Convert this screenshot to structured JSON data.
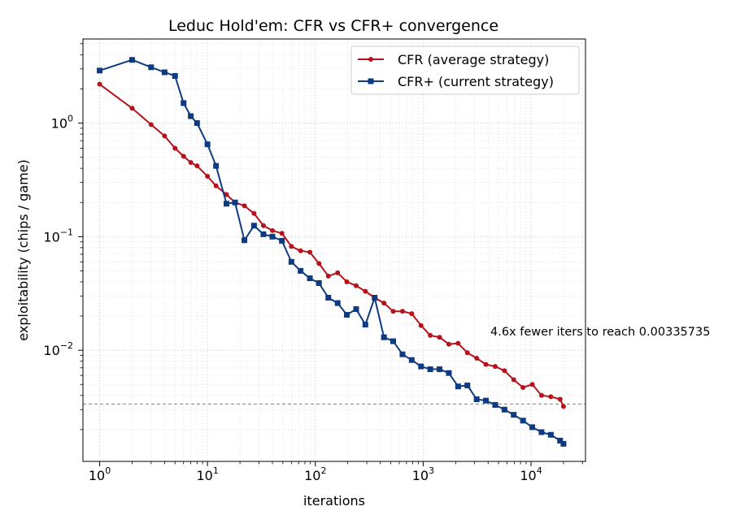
{
  "chart_data": {
    "type": "line",
    "title": "Leduc Hold'em: CFR vs CFR+ convergence",
    "xlabel": "iterations",
    "ylabel": "exploitability (chips / game)",
    "xscale": "log",
    "yscale": "log",
    "xlim": [
      0.7,
      32000
    ],
    "ylim": [
      0.00105,
      5.5
    ],
    "x_ticks": [
      {
        "value": 1,
        "base": "10",
        "exp": "0"
      },
      {
        "value": 10,
        "base": "10",
        "exp": "1"
      },
      {
        "value": 100,
        "base": "10",
        "exp": "2"
      },
      {
        "value": 1000,
        "base": "10",
        "exp": "3"
      },
      {
        "value": 10000,
        "base": "10",
        "exp": "4"
      }
    ],
    "y_ticks": [
      {
        "value": 0.01,
        "base": "10",
        "exp": "−2"
      },
      {
        "value": 0.1,
        "base": "10",
        "exp": "−1"
      },
      {
        "value": 1,
        "base": "10",
        "exp": "0"
      }
    ],
    "grid": true,
    "legend_position": "top-right",
    "reference_line": {
      "y": 0.00335735,
      "style": "dashed",
      "color": "#808080"
    },
    "annotation": {
      "text": "4.6x fewer iters to reach 0.00335735",
      "x": 4200,
      "y": 0.0135
    },
    "series": [
      {
        "name": "CFR (average strategy)",
        "color": "#b5121b",
        "marker": "circle",
        "x": [
          1,
          2,
          3,
          4,
          5,
          6,
          7,
          8,
          10,
          12,
          15,
          18,
          22,
          27,
          33,
          40,
          49,
          60,
          73,
          89,
          108,
          132,
          161,
          196,
          239,
          291,
          355,
          433,
          527,
          643,
          783,
          955,
          1164,
          1419,
          1730,
          2108,
          2570,
          3132,
          3818,
          4654,
          5672,
          6914,
          8428,
          10272,
          12522,
          15263,
          18605,
          20000
        ],
        "y": [
          2.2,
          1.35,
          0.97,
          0.77,
          0.6,
          0.51,
          0.45,
          0.42,
          0.34,
          0.28,
          0.235,
          0.2,
          0.187,
          0.16,
          0.125,
          0.113,
          0.107,
          0.082,
          0.075,
          0.073,
          0.058,
          0.045,
          0.048,
          0.04,
          0.037,
          0.033,
          0.029,
          0.026,
          0.022,
          0.022,
          0.021,
          0.0165,
          0.0135,
          0.013,
          0.0113,
          0.0115,
          0.0095,
          0.0085,
          0.0075,
          0.0072,
          0.0066,
          0.0055,
          0.0047,
          0.005,
          0.004,
          0.0039,
          0.0037,
          0.0032
        ]
      },
      {
        "name": "CFR+ (current strategy)",
        "color": "#0d3a80",
        "marker": "square",
        "x": [
          1,
          2,
          3,
          4,
          5,
          6,
          7,
          8,
          10,
          12,
          15,
          18,
          22,
          27,
          33,
          40,
          49,
          60,
          73,
          89,
          108,
          132,
          161,
          196,
          239,
          291,
          355,
          433,
          527,
          643,
          783,
          955,
          1164,
          1419,
          1730,
          2108,
          2570,
          3132,
          3818,
          4654,
          5672,
          6914,
          8428,
          10272,
          12522,
          15263,
          18605,
          20000
        ],
        "y": [
          2.9,
          3.6,
          3.1,
          2.8,
          2.6,
          1.5,
          1.15,
          1.0,
          0.65,
          0.42,
          0.195,
          0.2,
          0.093,
          0.125,
          0.105,
          0.1,
          0.092,
          0.06,
          0.05,
          0.043,
          0.039,
          0.029,
          0.026,
          0.0205,
          0.023,
          0.0168,
          0.029,
          0.013,
          0.012,
          0.0092,
          0.0082,
          0.0072,
          0.0068,
          0.0068,
          0.0063,
          0.0048,
          0.0049,
          0.0037,
          0.0036,
          0.0033,
          0.003,
          0.0027,
          0.0024,
          0.0021,
          0.0019,
          0.0018,
          0.0016,
          0.0015
        ]
      }
    ]
  }
}
